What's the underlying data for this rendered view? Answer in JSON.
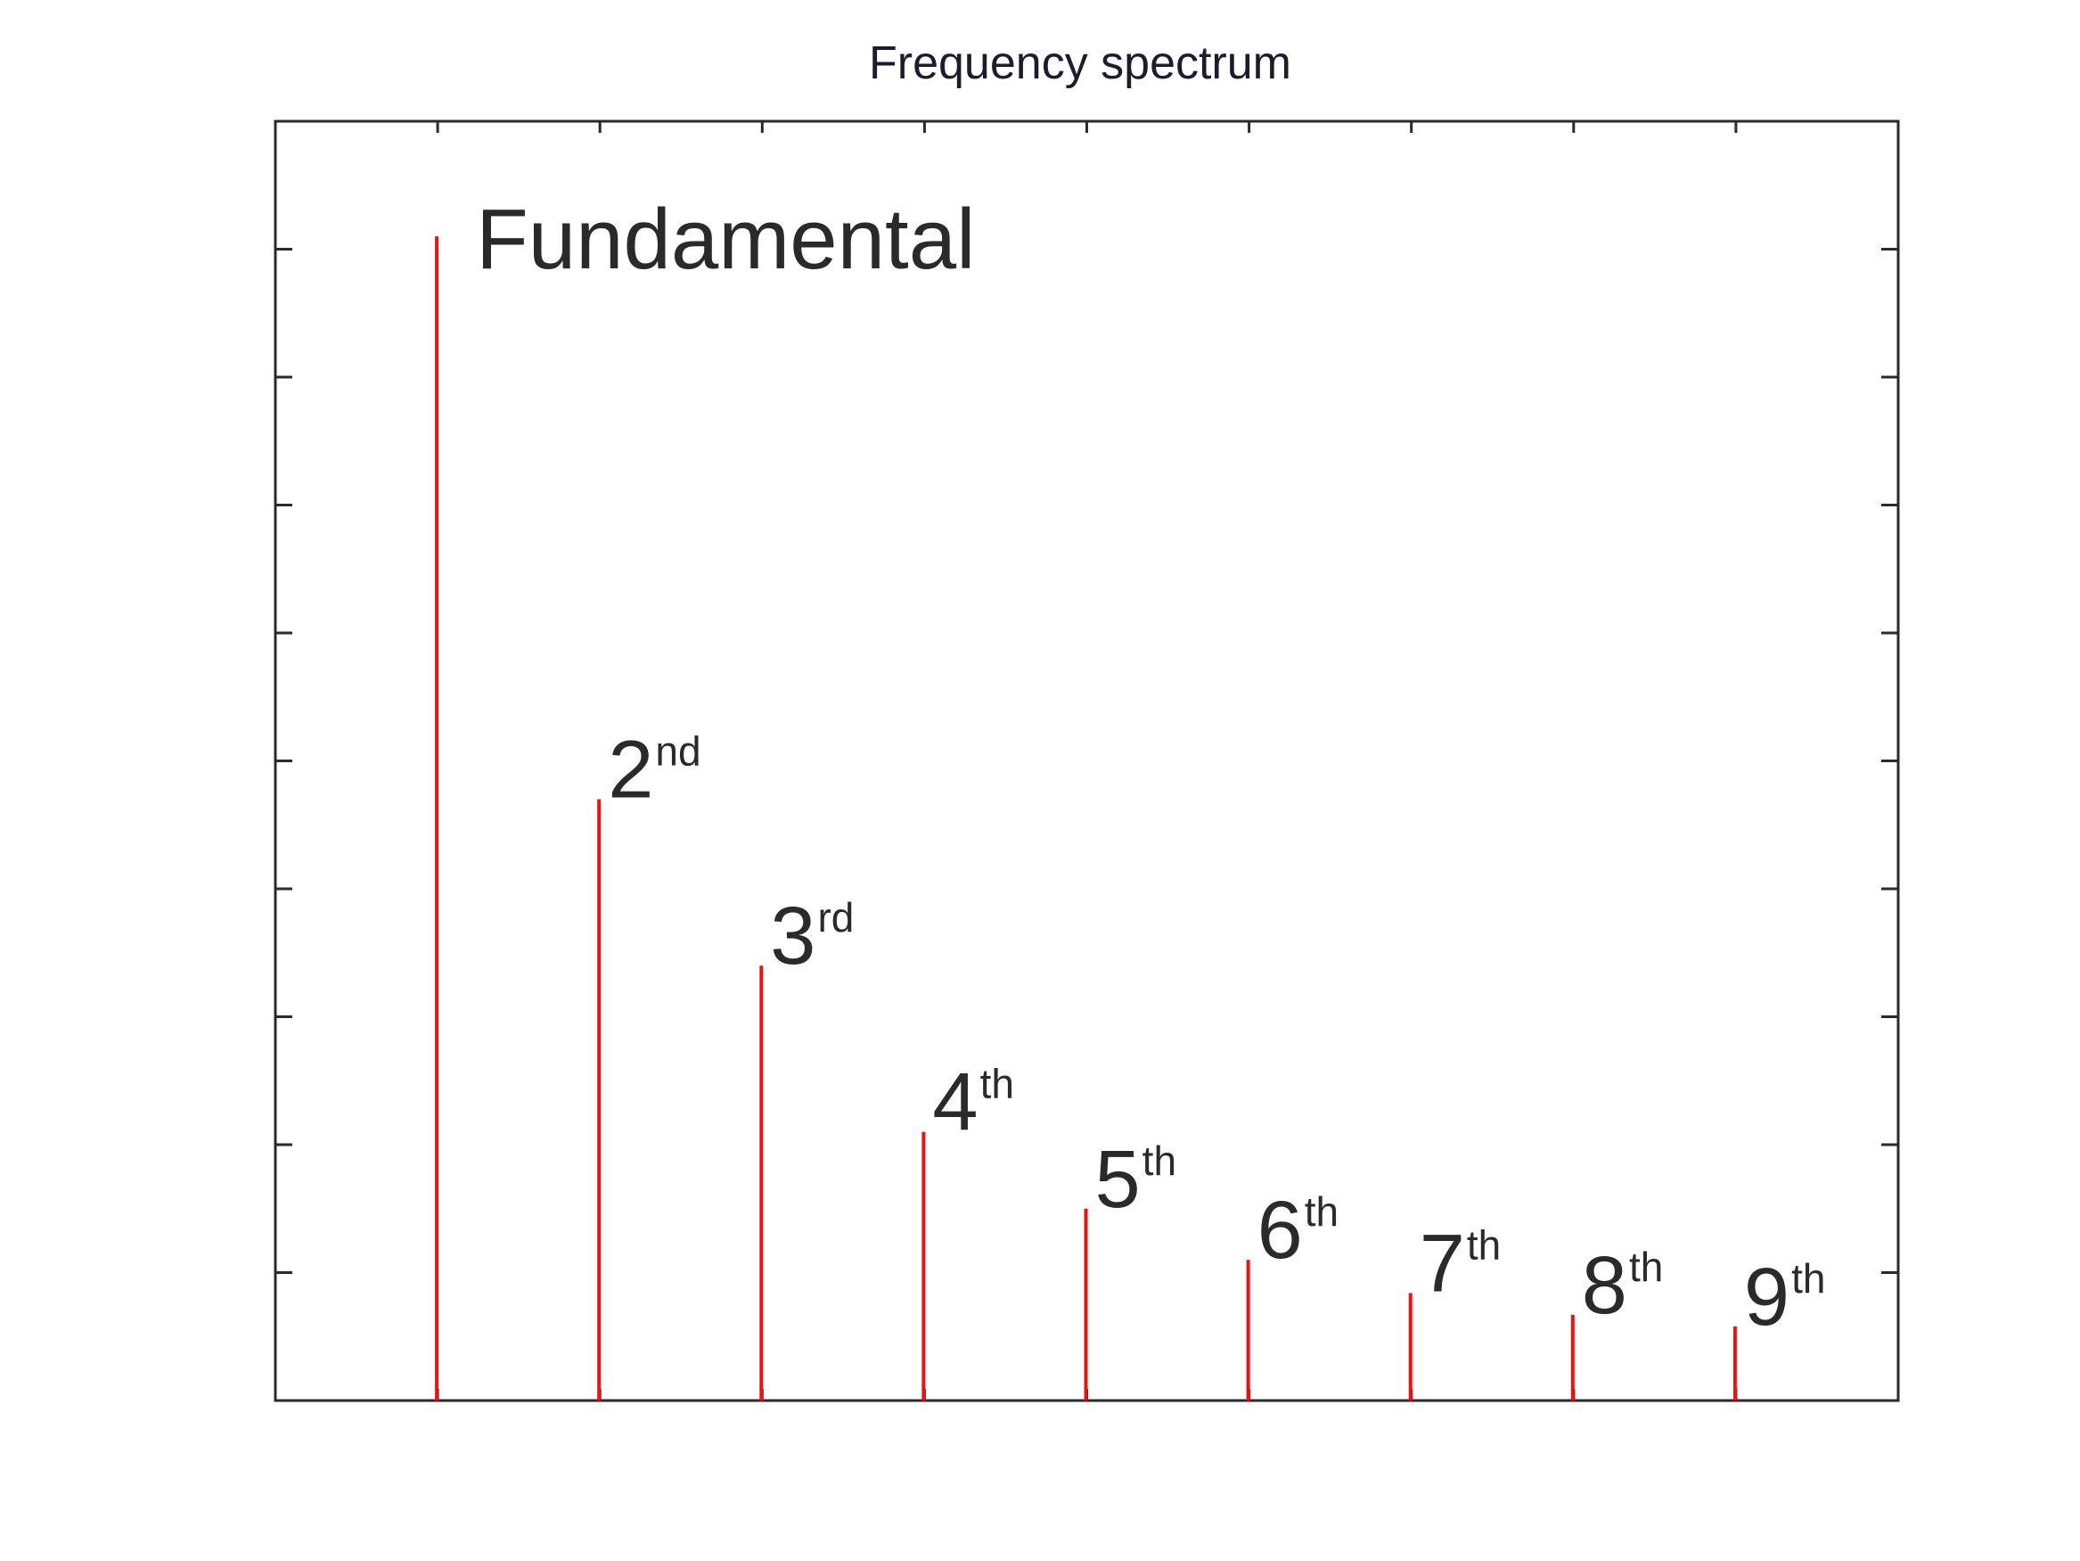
{
  "chart_data": {
    "type": "bar",
    "title": "Frequency spectrum",
    "xlabel": "",
    "ylabel": "",
    "x": [
      1,
      2,
      3,
      4,
      5,
      6,
      7,
      8,
      9
    ],
    "values": [
      0.91,
      0.47,
      0.34,
      0.21,
      0.15,
      0.11,
      0.084,
      0.067,
      0.058
    ],
    "labels": [
      {
        "main": "Fundamental",
        "sup": ""
      },
      {
        "main": "2",
        "sup": "nd"
      },
      {
        "main": "3",
        "sup": "rd"
      },
      {
        "main": "4",
        "sup": "th"
      },
      {
        "main": "5",
        "sup": "th"
      },
      {
        "main": "6",
        "sup": "th"
      },
      {
        "main": "7",
        "sup": "th"
      },
      {
        "main": "8",
        "sup": "th"
      },
      {
        "main": "9",
        "sup": "th"
      }
    ],
    "xlim": [
      0,
      10
    ],
    "ylim": [
      0,
      1
    ],
    "x_tick_labels": [],
    "y_tick_labels": [],
    "grid": false,
    "legend": "none",
    "colors": {
      "stem": "#ee1111",
      "axes": "#2a2a2a",
      "text": "#2a2a2a"
    }
  }
}
